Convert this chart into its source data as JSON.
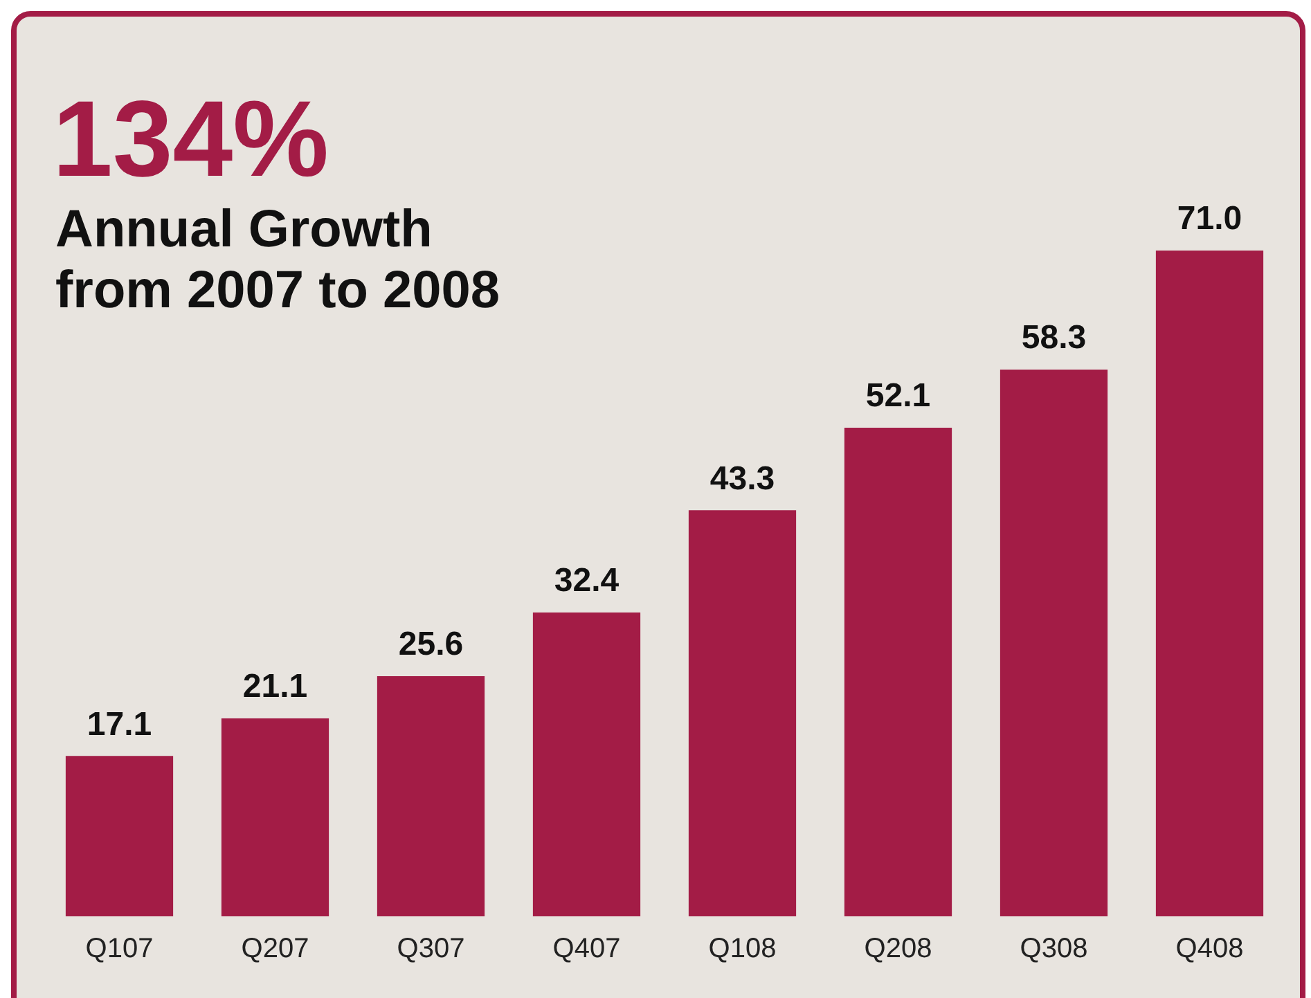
{
  "chart_data": {
    "type": "bar",
    "title": "134%",
    "subtitle": "Annual Growth from 2007 to 2008",
    "categories": [
      "Q107",
      "Q207",
      "Q307",
      "Q407",
      "Q108",
      "Q208",
      "Q308",
      "Q408"
    ],
    "values": [
      17.1,
      21.1,
      25.6,
      32.4,
      43.3,
      52.1,
      58.3,
      71.0
    ],
    "value_labels": [
      "17.1",
      "21.1",
      "25.6",
      "32.4",
      "43.3",
      "52.1",
      "58.3",
      "71.0"
    ],
    "color": "#a31c46",
    "grid": false,
    "legend": false
  }
}
